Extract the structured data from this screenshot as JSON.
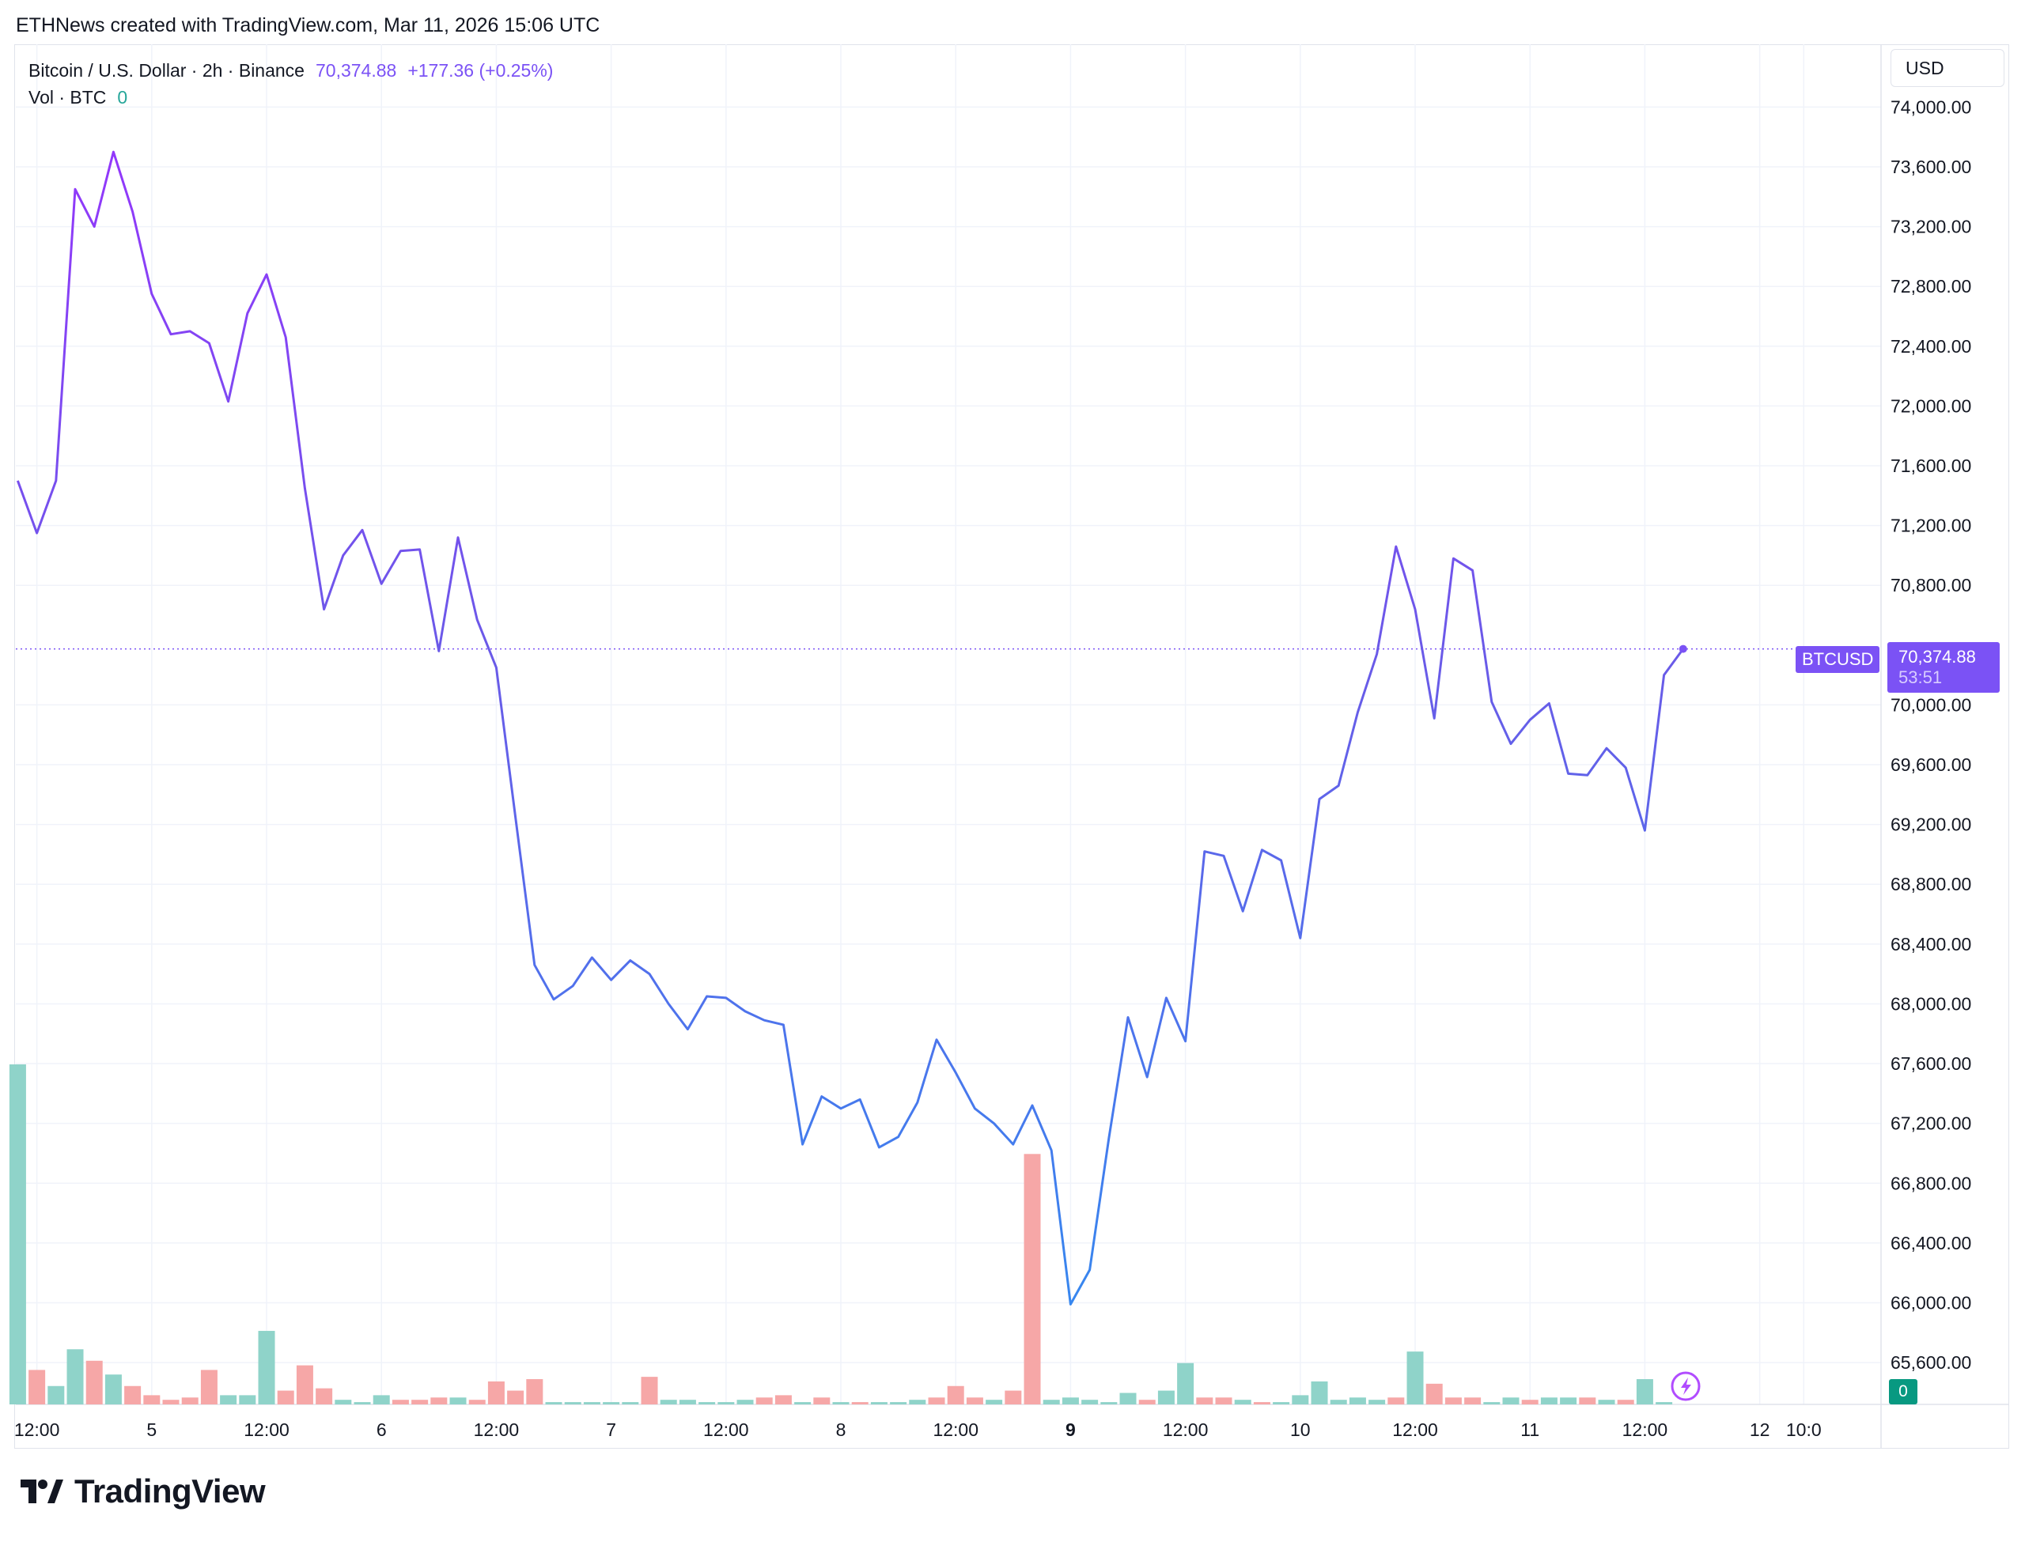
{
  "caption": "ETHNews created with TradingView.com, Mar 11, 2026 15:06 UTC",
  "legend": {
    "symbol": "Bitcoin / U.S. Dollar · 2h · Binance",
    "last": "70,374.88",
    "change": "+177.36 (+0.25%)",
    "vol_label": "Vol · BTC",
    "vol_value": "0"
  },
  "currency_button": "USD",
  "symbol_tag": "BTCUSD",
  "price_tag": {
    "price": "70,374.88",
    "countdown": "53:51"
  },
  "volume_tag": "0",
  "brand": "TradingView",
  "colors": {
    "line_start": "#9b30ff",
    "line_mid": "#6a5ae8",
    "line_low": "#2f8ef0",
    "accent": "#7b52f5",
    "vol_up": "#8fd3c9",
    "vol_down": "#f6a7a7"
  },
  "chart_data": {
    "type": "line",
    "title": "Bitcoin / U.S. Dollar · 2h · Binance",
    "y_ticks": [
      "74,000.00",
      "73,600.00",
      "73,200.00",
      "72,800.00",
      "72,400.00",
      "72,000.00",
      "71,600.00",
      "71,200.00",
      "70,800.00",
      "70,000.00",
      "69,600.00",
      "69,200.00",
      "68,800.00",
      "68,400.00",
      "68,000.00",
      "67,600.00",
      "67,200.00",
      "66,800.00",
      "66,400.00",
      "66,000.00",
      "65,600.00"
    ],
    "y_tick_values": [
      74000,
      73600,
      73200,
      72800,
      72400,
      72000,
      71600,
      71200,
      70800,
      70000,
      69600,
      69200,
      68800,
      68400,
      68000,
      67600,
      67200,
      66800,
      66400,
      66000,
      65600
    ],
    "ylim": [
      65320,
      74420
    ],
    "x_ticks": [
      "12:00",
      "5",
      "12:00",
      "6",
      "12:00",
      "7",
      "12:00",
      "8",
      "12:00",
      "9",
      "12:00",
      "10",
      "12:00",
      "11",
      "12:00",
      "12",
      "10:0"
    ],
    "x_tick_bold": [
      "9"
    ],
    "x_tick_index": [
      2,
      8,
      14,
      20,
      26,
      32,
      38,
      44,
      50,
      56,
      62,
      68,
      74,
      80,
      86,
      92,
      94.3
    ],
    "x_range": [
      0.9,
      99
    ],
    "series": [
      {
        "values": [
          71500,
          71150,
          71500,
          73450,
          73200,
          73700,
          73300,
          72750,
          72480,
          72500,
          72420,
          72030,
          72620,
          72880,
          72460,
          71450,
          70640,
          71000,
          71170,
          70810,
          71030,
          71040,
          70360,
          71120,
          70570,
          70250,
          69250,
          68260,
          68030,
          68120,
          68310,
          68160,
          68290,
          68200,
          68000,
          67830,
          68050,
          68040,
          67950,
          67890,
          67860,
          67060,
          67380,
          67300,
          67360,
          67040,
          67110,
          67340,
          67760,
          67540,
          67300,
          67200,
          67060,
          67320,
          67020,
          65990,
          66220,
          67100,
          67910,
          67510,
          68040,
          67750,
          69020,
          68990,
          68620,
          69030,
          68960,
          68440,
          69370,
          69460,
          69950,
          70340,
          71060,
          70640,
          69910,
          70980,
          70900,
          70020,
          69740,
          69900,
          70010,
          69540,
          69530,
          69710,
          69580,
          69160,
          70200,
          70374.88
        ]
      }
    ],
    "volume": {
      "label": "Vol · BTC",
      "values": [
        14.8,
        1.5,
        0.8,
        2.4,
        1.9,
        1.3,
        0.8,
        0.4,
        0.2,
        0.3,
        1.5,
        0.4,
        0.4,
        3.2,
        0.6,
        1.7,
        0.7,
        0.2,
        0.1,
        0.4,
        0.2,
        0.2,
        0.3,
        0.3,
        0.2,
        1.0,
        0.6,
        1.1,
        0.1,
        0.1,
        0.1,
        0.1,
        0.1,
        1.2,
        0.2,
        0.2,
        0.1,
        0.1,
        0.2,
        0.3,
        0.4,
        0.1,
        0.3,
        0.1,
        0.1,
        0.1,
        0.1,
        0.2,
        0.3,
        0.8,
        0.3,
        0.2,
        0.6,
        10.9,
        0.2,
        0.3,
        0.2,
        0.1,
        0.5,
        0.2,
        0.6,
        1.8,
        0.3,
        0.3,
        0.2,
        0.1,
        0.1,
        0.4,
        1.0,
        0.2,
        0.3,
        0.2,
        0.3,
        2.3,
        0.9,
        0.3,
        0.3,
        0.1,
        0.3,
        0.2,
        0.3,
        0.3,
        0.3,
        0.2,
        0.2,
        1.1,
        0.1
      ],
      "colors": [
        "u",
        "d",
        "u",
        "u",
        "d",
        "u",
        "d",
        "d",
        "d",
        "d",
        "d",
        "u",
        "u",
        "u",
        "d",
        "d",
        "d",
        "u",
        "u",
        "u",
        "d",
        "d",
        "d",
        "u",
        "d",
        "d",
        "d",
        "d",
        "u",
        "u",
        "u",
        "u",
        "u",
        "d",
        "u",
        "u",
        "u",
        "u",
        "u",
        "d",
        "d",
        "u",
        "d",
        "u",
        "d",
        "u",
        "u",
        "u",
        "d",
        "d",
        "d",
        "u",
        "d",
        "d",
        "u",
        "u",
        "u",
        "u",
        "u",
        "d",
        "u",
        "u",
        "d",
        "d",
        "u",
        "d",
        "u",
        "u",
        "u",
        "u",
        "u",
        "u",
        "d",
        "u",
        "d",
        "d",
        "d",
        "u",
        "u",
        "d",
        "u",
        "u",
        "d",
        "u",
        "d",
        "u",
        "u"
      ]
    }
  }
}
